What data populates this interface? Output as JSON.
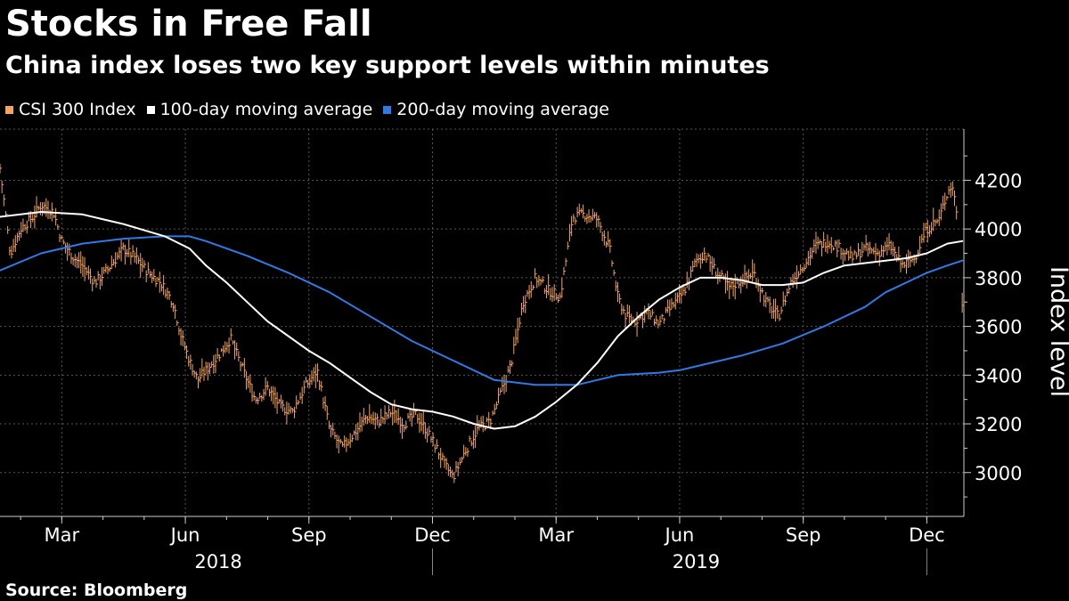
{
  "header": {
    "title": "Stocks in Free Fall",
    "subtitle": "China index loses two key support levels within minutes",
    "source": "Source: Bloomberg"
  },
  "colors": {
    "index": "#f4a460",
    "ma100": "#ffffff",
    "ma200": "#2f7ae5",
    "grid": "#555555",
    "axis": "#cccccc"
  },
  "chart_data": {
    "type": "line",
    "title": "Stocks in Free Fall",
    "subtitle": "China index loses two key support levels within minutes",
    "ylabel": "Index level",
    "xlabel": "",
    "ylim": [
      2820,
      4410
    ],
    "yticks": [
      3000,
      3200,
      3400,
      3600,
      3800,
      4000,
      4200
    ],
    "x_range_months": [
      0,
      23.4
    ],
    "x_origin": "2018-01-15",
    "month_ticks": [
      {
        "label": "Mar",
        "m": 1.5
      },
      {
        "label": "Jun",
        "m": 4.5
      },
      {
        "label": "Sep",
        "m": 7.5
      },
      {
        "label": "Dec",
        "m": 10.5
      },
      {
        "label": "Mar",
        "m": 13.5
      },
      {
        "label": "Jun",
        "m": 16.5
      },
      {
        "label": "Sep",
        "m": 19.5
      },
      {
        "label": "Dec",
        "m": 22.5
      }
    ],
    "year_labels": [
      {
        "label": "2018",
        "m": 5.3
      },
      {
        "label": "2019",
        "m": 16.9
      }
    ],
    "year_dividers": [
      10.5,
      22.5
    ],
    "legend": [
      "CSI 300 Index",
      "100-day moving average",
      "200-day moving average"
    ],
    "series": [
      {
        "name": "CSI 300 Index",
        "style": "hlc-bars",
        "anchors_x": [
          0,
          0.25,
          0.5,
          0.8,
          1.0,
          1.3,
          1.5,
          1.8,
          2.0,
          2.3,
          2.6,
          3.0,
          3.3,
          3.6,
          3.9,
          4.2,
          4.4,
          4.6,
          4.8,
          5.0,
          5.3,
          5.6,
          5.9,
          6.2,
          6.5,
          6.8,
          7.1,
          7.4,
          7.7,
          8.0,
          8.3,
          8.6,
          8.9,
          9.2,
          9.5,
          9.8,
          10.1,
          10.4,
          10.6,
          10.8,
          11.0,
          11.3,
          11.6,
          11.9,
          12.1,
          12.4,
          12.7,
          13.0,
          13.3,
          13.6,
          13.9,
          14.2,
          14.5,
          14.8,
          15.0,
          15.2,
          15.4,
          15.7,
          16.0,
          16.3,
          16.6,
          16.9,
          17.1,
          17.4,
          17.7,
          18.0,
          18.3,
          18.6,
          18.9,
          19.2,
          19.5,
          19.8,
          20.1,
          20.4,
          20.7,
          21.0,
          21.3,
          21.6,
          21.9,
          22.2,
          22.5,
          22.8,
          23.0,
          23.1,
          23.2,
          23.28,
          23.36
        ],
        "anchors_y": [
          4250,
          3900,
          4000,
          4050,
          4100,
          4070,
          3950,
          3880,
          3850,
          3780,
          3830,
          3920,
          3880,
          3820,
          3780,
          3700,
          3560,
          3460,
          3380,
          3420,
          3480,
          3550,
          3420,
          3300,
          3350,
          3270,
          3250,
          3350,
          3420,
          3180,
          3100,
          3160,
          3230,
          3210,
          3250,
          3200,
          3240,
          3160,
          3100,
          3030,
          2980,
          3090,
          3180,
          3210,
          3300,
          3440,
          3700,
          3800,
          3750,
          3720,
          4050,
          4060,
          4040,
          3920,
          3720,
          3640,
          3620,
          3660,
          3610,
          3680,
          3740,
          3870,
          3900,
          3820,
          3760,
          3790,
          3820,
          3700,
          3640,
          3780,
          3850,
          3930,
          3950,
          3920,
          3880,
          3920,
          3900,
          3930,
          3850,
          3880,
          4000,
          4040,
          4150,
          4180,
          4120,
          3950,
          3680
        ]
      },
      {
        "name": "100-day moving average",
        "style": "line",
        "x": [
          0,
          1.0,
          2.0,
          3.0,
          4.0,
          4.6,
          5.0,
          5.5,
          6.0,
          6.5,
          7.0,
          7.5,
          8.0,
          8.5,
          9.0,
          9.5,
          10.0,
          10.5,
          11.0,
          11.5,
          12.0,
          12.5,
          13.0,
          13.5,
          14.0,
          14.5,
          15.0,
          15.5,
          16.0,
          16.5,
          17.0,
          17.5,
          18.0,
          18.5,
          19.0,
          19.5,
          20.0,
          20.5,
          21.0,
          21.5,
          22.0,
          22.5,
          23.0,
          23.36
        ],
        "y": [
          4050,
          4070,
          4060,
          4020,
          3970,
          3920,
          3850,
          3780,
          3700,
          3620,
          3560,
          3500,
          3450,
          3390,
          3330,
          3280,
          3260,
          3250,
          3230,
          3200,
          3180,
          3190,
          3230,
          3290,
          3360,
          3450,
          3560,
          3640,
          3710,
          3760,
          3800,
          3800,
          3790,
          3770,
          3770,
          3780,
          3820,
          3850,
          3860,
          3870,
          3880,
          3900,
          3940,
          3950
        ]
      },
      {
        "name": "200-day moving average",
        "style": "line",
        "x": [
          0,
          1.0,
          2.0,
          3.0,
          4.0,
          4.6,
          5.0,
          6.0,
          7.0,
          8.0,
          9.0,
          10.0,
          11.0,
          12.0,
          12.5,
          13.0,
          14.0,
          15.0,
          16.0,
          16.5,
          17.0,
          18.0,
          19.0,
          20.0,
          21.0,
          21.5,
          22.0,
          22.5,
          23.0,
          23.36
        ],
        "y": [
          3830,
          3900,
          3940,
          3960,
          3970,
          3970,
          3950,
          3890,
          3820,
          3740,
          3640,
          3540,
          3460,
          3380,
          3370,
          3360,
          3360,
          3400,
          3410,
          3420,
          3440,
          3480,
          3530,
          3600,
          3680,
          3740,
          3780,
          3820,
          3850,
          3870
        ]
      }
    ]
  }
}
